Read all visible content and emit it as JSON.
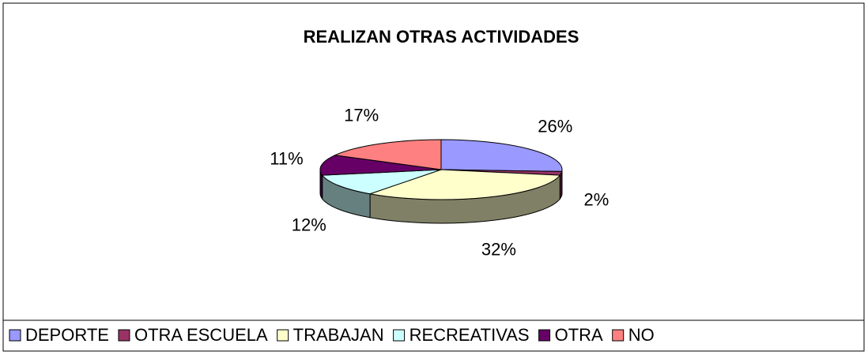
{
  "chart_data": {
    "type": "pie",
    "title": "REALIZAN OTRAS ACTIVIDADES",
    "categories": [
      "DEPORTE",
      "OTRA ESCUELA",
      "TRABAJAN",
      "RECREATIVAS",
      "OTRA",
      "NO"
    ],
    "values": [
      26,
      2,
      32,
      12,
      11,
      17
    ],
    "value_labels": [
      "26%",
      "2%",
      "32%",
      "12%",
      "11%",
      "17%"
    ],
    "colors": [
      "#9999FF",
      "#993366",
      "#FFFFCC",
      "#CCFFFF",
      "#660066",
      "#FF8080"
    ],
    "legend": "bottom"
  }
}
